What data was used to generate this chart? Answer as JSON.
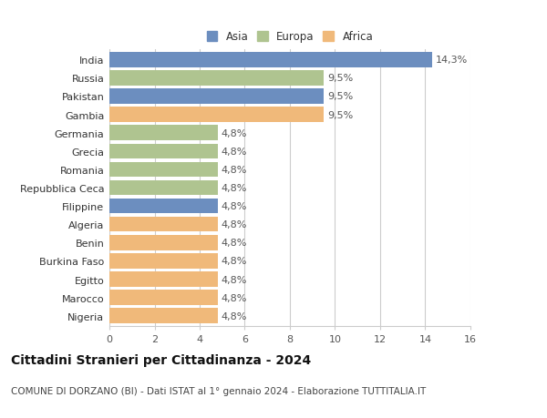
{
  "title": "Cittadini Stranieri per Cittadinanza - 2024",
  "subtitle": "COMUNE DI DORZANO (BI) - Dati ISTAT al 1° gennaio 2024 - Elaborazione TUTTITALIA.IT",
  "categories": [
    "India",
    "Russia",
    "Pakistan",
    "Gambia",
    "Germania",
    "Grecia",
    "Romania",
    "Repubblica Ceca",
    "Filippine",
    "Algeria",
    "Benin",
    "Burkina Faso",
    "Egitto",
    "Marocco",
    "Nigeria"
  ],
  "values": [
    14.3,
    9.5,
    9.5,
    9.5,
    4.8,
    4.8,
    4.8,
    4.8,
    4.8,
    4.8,
    4.8,
    4.8,
    4.8,
    4.8,
    4.8
  ],
  "continents": [
    "Asia",
    "Europa",
    "Asia",
    "Africa",
    "Europa",
    "Europa",
    "Europa",
    "Europa",
    "Asia",
    "Africa",
    "Africa",
    "Africa",
    "Africa",
    "Africa",
    "Africa"
  ],
  "labels": [
    "14,3%",
    "9,5%",
    "9,5%",
    "9,5%",
    "4,8%",
    "4,8%",
    "4,8%",
    "4,8%",
    "4,8%",
    "4,8%",
    "4,8%",
    "4,8%",
    "4,8%",
    "4,8%",
    "4,8%"
  ],
  "colors": {
    "Asia": "#6c8ebf",
    "Europa": "#afc490",
    "Africa": "#f0b97a"
  },
  "legend": [
    "Asia",
    "Europa",
    "Africa"
  ],
  "xlim": [
    0,
    16
  ],
  "xticks": [
    0,
    2,
    4,
    6,
    8,
    10,
    12,
    14,
    16
  ],
  "background_color": "#ffffff",
  "grid_color": "#cccccc",
  "bar_height": 0.82,
  "label_fontsize": 8,
  "tick_fontsize": 8,
  "title_fontsize": 10,
  "subtitle_fontsize": 7.5
}
